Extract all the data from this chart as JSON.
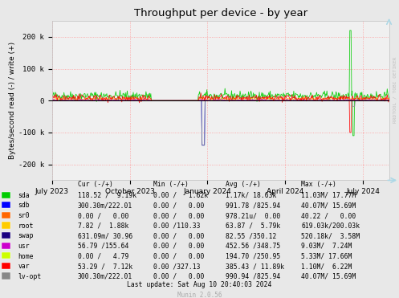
{
  "title": "Throughput per device - by year",
  "ylabel": "Bytes/second read (-) / write (+)",
  "xlabel_dates": [
    "July 2023",
    "October 2023",
    "January 2024",
    "April 2024",
    "July 2024"
  ],
  "ylim": [
    -250000,
    250000
  ],
  "yticks": [
    -200000,
    -100000,
    0,
    100000,
    200000
  ],
  "ytick_labels": [
    "-200 k",
    "-100 k",
    "0",
    "100 k",
    "200 k"
  ],
  "bg_color": "#e8e8e8",
  "plot_bg_color": "#f0f0f0",
  "grid_color": "#ff9999",
  "watermark": "RRDTOOL / TOBI OETIKER",
  "munin_text": "Munin 2.0.56",
  "last_update": "Last update: Sat Aug 10 20:40:03 2024",
  "legend_entries": [
    {
      "label": "sda",
      "color": "#00cc00"
    },
    {
      "label": "sdb",
      "color": "#0000ff"
    },
    {
      "label": "sr0",
      "color": "#ff6600"
    },
    {
      "label": "root",
      "color": "#ffcc00"
    },
    {
      "label": "swap",
      "color": "#1a0080"
    },
    {
      "label": "usr",
      "color": "#cc00cc"
    },
    {
      "label": "home",
      "color": "#ccff00"
    },
    {
      "label": "var",
      "color": "#ff0000"
    },
    {
      "label": "lv-opt",
      "color": "#888888"
    }
  ],
  "table_rows": [
    [
      "sda",
      "118.52 /  9.19k",
      "0.00 /   1.62k",
      "1.17k/ 18.63k",
      "11.03M/ 17.77M"
    ],
    [
      "sdb",
      "300.30m/222.01",
      "0.00 /   0.00",
      "991.78 /825.94",
      "40.07M/ 15.69M"
    ],
    [
      "sr0",
      "0.00 /   0.00",
      "0.00 /   0.00",
      "978.21u/  0.00",
      "40.22 /   0.00"
    ],
    [
      "root",
      "7.82 /  1.88k",
      "0.00 /110.33",
      "63.87 /  5.79k",
      "619.03k/200.03k"
    ],
    [
      "swap",
      "631.09m/ 30.96",
      "0.00 /   0.00",
      "82.55 /350.12",
      "520.18k/  3.58M"
    ],
    [
      "usr",
      "56.79 /155.64",
      "0.00 /   0.00",
      "452.56 /348.75",
      "9.03M/  7.24M"
    ],
    [
      "home",
      "0.00 /   4.79",
      "0.00 /   0.00",
      "194.70 /250.95",
      "5.33M/ 17.66M"
    ],
    [
      "var",
      "53.29 /  7.12k",
      "0.00 /327.13",
      "385.43 / 11.89k",
      "1.10M/  6.22M"
    ],
    [
      "lv-opt",
      "300.30m/222.01",
      "0.00 /   0.00",
      "990.94 /825.94",
      "40.07M/ 15.69M"
    ]
  ]
}
